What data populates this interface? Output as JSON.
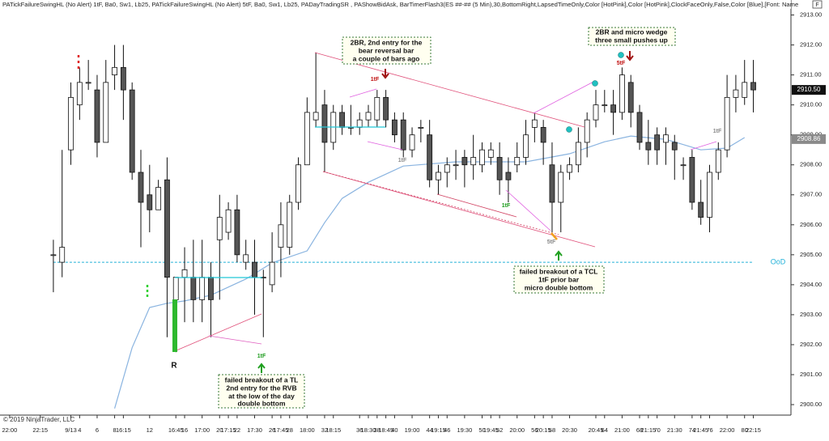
{
  "chart_data": {
    "type": "candlestick",
    "header": "PATickFailureSwingHL (No Alert)  1tF,  Ba0,  Sw1,  Lb25, PATickFailureSwingHL (No Alert)  5tF,  Ba0,  Sw1,  Lb25,  PADayTradingSR ,  PAShowBidAsk,  BarTimerFlash3(ES ##-## (5 Min),30,BottomRight,LapsedTimeOnly,Color [HotPink],Color [HotPink],ClockFaceOnly,False,Color [Blue],[Font: Name",
    "button": "F",
    "copyright": "© 2019 NinjaTrader, LLC",
    "x": [
      1,
      2,
      3,
      4,
      5,
      6,
      7,
      8,
      9,
      10,
      11,
      12,
      13,
      14,
      15,
      16,
      17,
      18,
      19,
      20,
      21,
      22,
      23,
      24,
      25,
      26,
      27,
      28,
      29,
      30,
      31,
      32,
      33,
      34,
      35,
      36,
      37,
      38,
      39,
      40,
      41,
      42,
      43,
      44,
      45,
      46,
      47,
      48,
      49,
      50,
      51,
      52,
      53,
      54,
      55,
      56,
      57,
      58,
      59,
      60,
      61,
      62,
      63,
      64,
      65,
      66,
      67,
      68,
      69,
      70,
      71,
      72,
      73,
      74,
      75,
      76,
      77,
      78,
      79,
      80,
      81
    ],
    "open": [
      2905,
      2904.75,
      2908.5,
      2910,
      2910.75,
      2910.5,
      2908.75,
      2911,
      2911.25,
      2910.5,
      2907.75,
      2907,
      2906.5,
      2907.5,
      2903.5,
      2904.25,
      2904.25,
      2903.5,
      2904.25,
      2905.5,
      2905.75,
      2906.5,
      2904.75,
      2904.75,
      2904.25,
      2904,
      2905.25,
      2905.25,
      2906.75,
      2908,
      2909.5,
      2910,
      2908.75,
      2909.75,
      2909.25,
      2909.25,
      2909.5,
      2909.5,
      2910.25,
      2909.5,
      2909.5,
      2908.5,
      2909.25,
      2909,
      2907.5,
      2907.75,
      2908,
      2908.25,
      2908,
      2908,
      2908.25,
      2908.25,
      2907.75,
      2908,
      2908.25,
      2909.25,
      2909.25,
      2908,
      2906.75,
      2907.75,
      2908,
      2908.75,
      2909.5,
      2910,
      2910,
      2909.75,
      2910.75,
      2909.75,
      2908.75,
      2909,
      2908.75,
      2908.75,
      2908,
      2908.25,
      2906.75,
      2906.25,
      2907.75,
      2908.5,
      2910.25,
      2910.25,
      2910.75
    ],
    "high": [
      2905.5,
      2908.5,
      2910.75,
      2911.25,
      2911.5,
      2911,
      2911.5,
      2912,
      2912,
      2910.75,
      2908.5,
      2908,
      2907.5,
      2908.25,
      2904.25,
      2905.25,
      2905.5,
      2905.5,
      2904.75,
      2907,
      2906.75,
      2907,
      2905.5,
      2905.5,
      2904.5,
      2905.75,
      2906.75,
      2907,
      2908.25,
      2910.25,
      2911.75,
      2910.5,
      2910,
      2910,
      2910,
      2909.75,
      2910,
      2910.5,
      2910.5,
      2909.75,
      2909.75,
      2909.25,
      2909.5,
      2909.5,
      2908,
      2908.25,
      2908.5,
      2908.5,
      2909,
      2908.75,
      2908.75,
      2908.75,
      2908.25,
      2908.75,
      2909.5,
      2909.75,
      2909.5,
      2908.75,
      2908,
      2908.25,
      2909.25,
      2909.75,
      2910.5,
      2910.5,
      2910.5,
      2911.25,
      2911,
      2910,
      2909.5,
      2909.25,
      2909.25,
      2909,
      2908.25,
      2908.5,
      2907.5,
      2908,
      2908.75,
      2911,
      2911,
      2911.5,
      2911.5
    ],
    "low": [
      2903.75,
      2904.25,
      2908,
      2909.5,
      2910.5,
      2908.25,
      2908.75,
      2910.5,
      2909.5,
      2907.5,
      2905.25,
      2905.75,
      2906.5,
      2902.25,
      2901.75,
      2902.75,
      2902.75,
      2902.75,
      2902.25,
      2903.5,
      2905.5,
      2904.75,
      2904.5,
      2903,
      2902.25,
      2903.75,
      2904.25,
      2905,
      2906.5,
      2908,
      2909.25,
      2907.75,
      2908.5,
      2909,
      2909,
      2909,
      2909.25,
      2909.25,
      2909.25,
      2908.75,
      2908.25,
      2908.25,
      2908.75,
      2907.25,
      2907,
      2907.25,
      2907.5,
      2907.25,
      2907.5,
      2907.75,
      2908,
      2907,
      2906.75,
      2907.75,
      2908,
      2908.75,
      2908,
      2905.75,
      2905.75,
      2907.5,
      2907.75,
      2908.25,
      2909.25,
      2909.75,
      2909,
      2909.5,
      2909.25,
      2908.5,
      2908,
      2908,
      2908,
      2907.5,
      2907.5,
      2906.5,
      2906,
      2905.75,
      2907.5,
      2908.25,
      2909.75,
      2910,
      2909.75
    ],
    "close": [
      2905,
      2905.25,
      2910.25,
      2910.75,
      2910.75,
      2908.75,
      2910.75,
      2911.25,
      2910.5,
      2907.75,
      2906.75,
      2906.5,
      2907.25,
      2904.25,
      2904.25,
      2904.5,
      2903.5,
      2904.25,
      2903.5,
      2906.25,
      2906.5,
      2905,
      2905,
      2904.25,
      2904.25,
      2904.75,
      2906,
      2906.75,
      2908,
      2909.75,
      2909.75,
      2908.75,
      2909.75,
      2909.25,
      2909.25,
      2909.5,
      2909.75,
      2910.25,
      2909.5,
      2909,
      2908.5,
      2909,
      2909.25,
      2907.5,
      2907.75,
      2908,
      2908,
      2908,
      2908.25,
      2908.5,
      2908.5,
      2907.5,
      2907.5,
      2908.25,
      2909,
      2909.5,
      2908.75,
      2906.75,
      2907.75,
      2908,
      2908.75,
      2909.5,
      2910,
      2910,
      2909.75,
      2911,
      2909.75,
      2908.75,
      2908.5,
      2908.5,
      2909,
      2908.5,
      2908,
      2906.75,
      2906.25,
      2907.75,
      2908.5,
      2910.25,
      2910.5,
      2910.75,
      2910.5
    ],
    "up_color": "#ffffff",
    "down_color": "#555555",
    "moving_average": {
      "color": "#8ab4e0",
      "x": [
        8,
        10,
        12,
        14,
        16,
        19,
        23,
        26,
        30,
        32,
        34,
        37,
        41,
        47,
        55,
        60,
        64,
        67,
        71,
        75,
        78,
        80
      ],
      "values": [
        2899.87,
        2901.9,
        2903.24,
        2903.38,
        2903.46,
        2903.65,
        2904.19,
        2904.73,
        2905.13,
        2906.07,
        2906.88,
        2907.42,
        2907.96,
        2908.1,
        2908.1,
        2908.37,
        2908.77,
        2908.96,
        2908.85,
        2908.5,
        2908.56,
        2908.91
      ]
    },
    "reference_line": {
      "value": 2904.75,
      "label": "OoD",
      "color": "#20b0d8"
    },
    "price_markers": [
      {
        "value": 2910.5,
        "label": "2910.50",
        "color": "#111111"
      },
      {
        "value": 2908.86,
        "label": "2908.86",
        "color": "#8a8a8a"
      }
    ],
    "xlim": [
      -5.1,
      85.3
    ],
    "ylim": [
      2899.65,
      2913.5
    ],
    "yticks": [
      {
        "value": 2900,
        "label": "2900.00"
      },
      {
        "value": 2901,
        "label": "2901.00"
      },
      {
        "value": 2902,
        "label": "2902.00"
      },
      {
        "value": 2903,
        "label": "2903.00"
      },
      {
        "value": 2904,
        "label": "2904.00"
      },
      {
        "value": 2905,
        "label": "2905.00"
      },
      {
        "value": 2906,
        "label": "2906.00"
      },
      {
        "value": 2907,
        "label": "2907.00"
      },
      {
        "value": 2908,
        "label": "2908.00"
      },
      {
        "value": 2909,
        "label": "2909.00"
      },
      {
        "value": 2910,
        "label": "2910.00"
      },
      {
        "value": 2911,
        "label": "2911.00"
      },
      {
        "value": 2912,
        "label": "2912.00"
      },
      {
        "value": 2913,
        "label": "2913.00"
      }
    ],
    "xticks": [
      {
        "value": -4,
        "label": "22:00"
      },
      {
        "value": -0.5,
        "label": "22:15"
      },
      {
        "value": 3,
        "label": "9/13"
      },
      4,
      6,
      8,
      {
        "value": 9,
        "label": "16:15"
      },
      12,
      {
        "value": 15,
        "label": "16:45"
      },
      16,
      {
        "value": 18,
        "label": "17:00"
      },
      20,
      {
        "value": 21,
        "label": "17:15"
      },
      22,
      {
        "value": 24,
        "label": "17:30"
      },
      26,
      {
        "value": 27,
        "label": "17:45"
      },
      28,
      {
        "value": 30,
        "label": "18:00"
      },
      32,
      {
        "value": 33,
        "label": "18:15"
      },
      36,
      {
        "value": 37,
        "label": "18:30"
      },
      38,
      {
        "value": 39,
        "label": "18:45"
      },
      40,
      {
        "value": 42,
        "label": "19:00"
      },
      44,
      {
        "value": 45,
        "label": "19:15"
      },
      46,
      {
        "value": 48,
        "label": "19:30"
      },
      50,
      {
        "value": 51,
        "label": "19:45"
      },
      52,
      {
        "value": 54,
        "label": "20:00"
      },
      56,
      {
        "value": 57,
        "label": "20:15"
      },
      58,
      {
        "value": 60,
        "label": "20:30"
      },
      {
        "value": 63,
        "label": "20:45"
      },
      64,
      {
        "value": 66,
        "label": "21:00"
      },
      68,
      {
        "value": 69,
        "label": "21:15"
      },
      70,
      {
        "value": 72,
        "label": "21:30"
      },
      74,
      {
        "value": 75,
        "label": "21:45"
      },
      76,
      {
        "value": 78,
        "label": "22:00"
      },
      80,
      {
        "value": 81,
        "label": "22:15"
      }
    ],
    "annotations": [
      {
        "lines": [
          "2BR, 2nd entry for the",
          "bear reversal bar",
          "a couple of bars ago"
        ]
      },
      {
        "lines": [
          "2BR and micro wedge",
          "three small pushes up"
        ]
      },
      {
        "lines": [
          "failed breakout of a TCL",
          "1tF prior bar",
          "micro double bottom"
        ]
      },
      {
        "lines": [
          "failed breakout of a TL",
          "2nd entry for the RVB",
          "at the low of the day",
          "double bottom"
        ]
      }
    ],
    "signals": [
      "1tF",
      "5tF",
      "1tF",
      "1tF",
      "1tF",
      "5tF",
      "1tF",
      "R"
    ]
  }
}
